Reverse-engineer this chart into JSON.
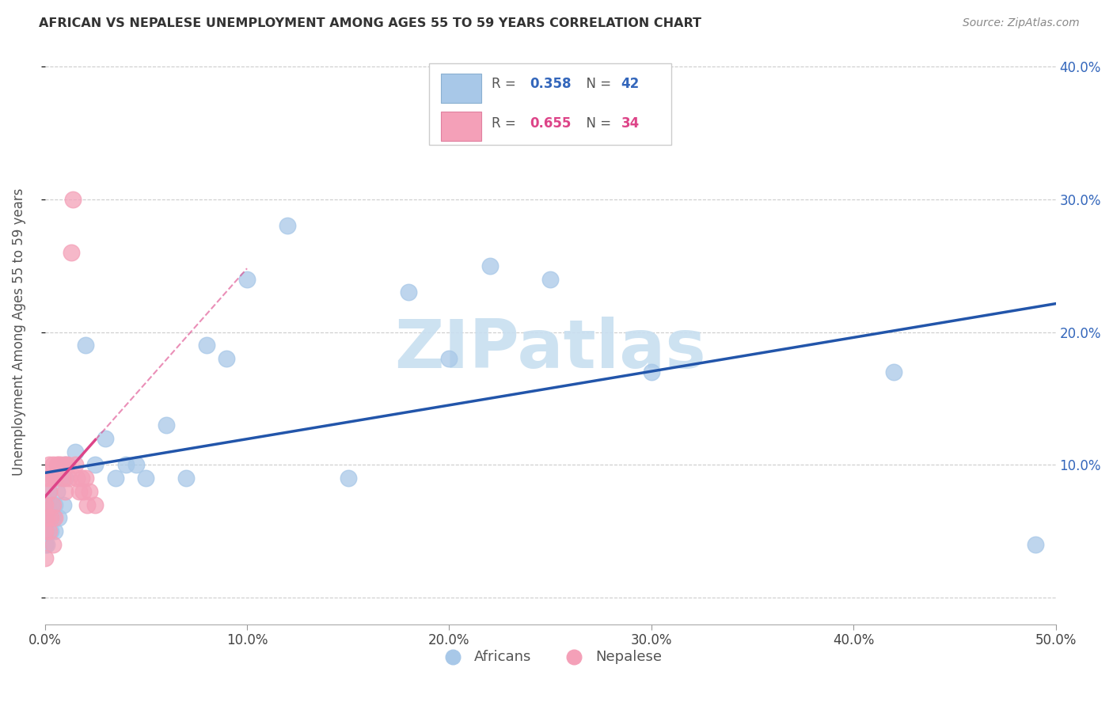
{
  "title": "AFRICAN VS NEPALESE UNEMPLOYMENT AMONG AGES 55 TO 59 YEARS CORRELATION CHART",
  "source": "Source: ZipAtlas.com",
  "ylabel": "Unemployment Among Ages 55 to 59 years",
  "xlim": [
    0,
    0.5
  ],
  "ylim": [
    -0.02,
    0.42
  ],
  "xticks": [
    0.0,
    0.1,
    0.2,
    0.3,
    0.4,
    0.5
  ],
  "xticklabels": [
    "0.0%",
    "10.0%",
    "20.0%",
    "30.0%",
    "40.0%",
    "50.0%"
  ],
  "yticks": [
    0.0,
    0.1,
    0.2,
    0.3,
    0.4
  ],
  "yticklabels_right": [
    "",
    "10.0%",
    "20.0%",
    "30.0%",
    "40.0%"
  ],
  "africans_R": "0.358",
  "africans_N": "42",
  "nepalese_R": "0.655",
  "nepalese_N": "34",
  "african_color": "#a8c8e8",
  "nepalese_color": "#f4a0b8",
  "african_line_color": "#2255aa",
  "nepalese_line_color": "#dd4488",
  "background_color": "#ffffff",
  "grid_color": "#cccccc",
  "africans_x": [
    0.0,
    0.0,
    0.0,
    0.001,
    0.001,
    0.001,
    0.002,
    0.002,
    0.003,
    0.003,
    0.004,
    0.004,
    0.005,
    0.005,
    0.006,
    0.007,
    0.008,
    0.009,
    0.01,
    0.01,
    0.015,
    0.02,
    0.025,
    0.03,
    0.035,
    0.04,
    0.045,
    0.05,
    0.06,
    0.07,
    0.08,
    0.09,
    0.1,
    0.12,
    0.15,
    0.18,
    0.2,
    0.22,
    0.25,
    0.3,
    0.42,
    0.49
  ],
  "africans_y": [
    0.04,
    0.06,
    0.07,
    0.05,
    0.07,
    0.04,
    0.06,
    0.08,
    0.05,
    0.07,
    0.06,
    0.09,
    0.07,
    0.05,
    0.08,
    0.06,
    0.09,
    0.07,
    0.1,
    0.09,
    0.11,
    0.19,
    0.1,
    0.12,
    0.09,
    0.1,
    0.1,
    0.09,
    0.13,
    0.09,
    0.19,
    0.18,
    0.24,
    0.28,
    0.09,
    0.23,
    0.18,
    0.25,
    0.24,
    0.17,
    0.17,
    0.04
  ],
  "nepalese_x": [
    0.0,
    0.0,
    0.0,
    0.001,
    0.001,
    0.002,
    0.002,
    0.002,
    0.003,
    0.003,
    0.004,
    0.004,
    0.004,
    0.005,
    0.005,
    0.006,
    0.007,
    0.008,
    0.009,
    0.01,
    0.01,
    0.011,
    0.012,
    0.013,
    0.014,
    0.015,
    0.016,
    0.017,
    0.018,
    0.019,
    0.02,
    0.021,
    0.022,
    0.025
  ],
  "nepalese_y": [
    0.03,
    0.05,
    0.07,
    0.06,
    0.09,
    0.05,
    0.08,
    0.1,
    0.06,
    0.09,
    0.04,
    0.07,
    0.1,
    0.06,
    0.09,
    0.1,
    0.1,
    0.1,
    0.09,
    0.1,
    0.08,
    0.1,
    0.09,
    0.26,
    0.3,
    0.1,
    0.09,
    0.08,
    0.09,
    0.08,
    0.09,
    0.07,
    0.08,
    0.07
  ],
  "watermark_text": "ZIPatlas",
  "watermark_color": "#c8dff0",
  "legend_label_african": "Africans",
  "legend_label_nepalese": "Nepalese"
}
